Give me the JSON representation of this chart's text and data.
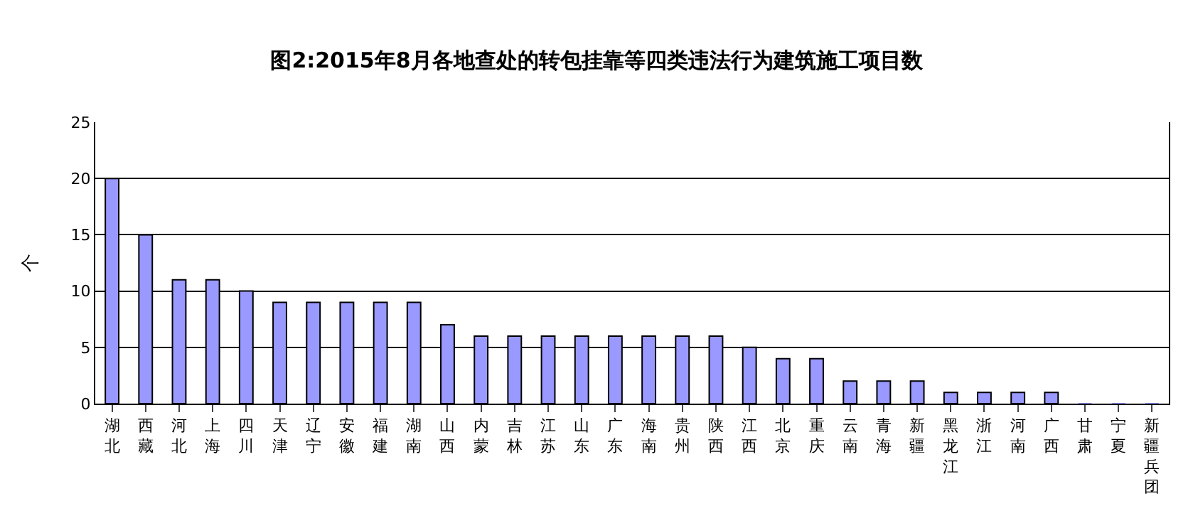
{
  "chart_data": {
    "type": "bar",
    "title": "图2:2015年8月各地查处的转包挂靠等四类违法行为建筑施工项目数",
    "ylabel": "个",
    "categories": [
      "湖北",
      "西藏",
      "河北",
      "上海",
      "四川",
      "天津",
      "辽宁",
      "安徽",
      "福建",
      "湖南",
      "山西",
      "内蒙",
      "吉林",
      "江苏",
      "山东",
      "广东",
      "海南",
      "贵州",
      "陕西",
      "江西",
      "北京",
      "重庆",
      "云南",
      "青海",
      "新疆",
      "黑龙江",
      "浙江",
      "河南",
      "广西",
      "甘肃",
      "宁夏",
      "新疆兵团"
    ],
    "values": [
      20,
      15,
      11,
      11,
      10,
      9,
      9,
      9,
      9,
      9,
      7,
      6,
      6,
      6,
      6,
      6,
      6,
      6,
      6,
      5,
      4,
      4,
      2,
      2,
      2,
      1,
      1,
      1,
      1,
      0,
      0,
      0
    ],
    "color": "#9999ff",
    "ylim": [
      0,
      25
    ],
    "yticks": [
      0,
      5,
      10,
      15,
      20,
      25
    ],
    "grid": "y"
  }
}
